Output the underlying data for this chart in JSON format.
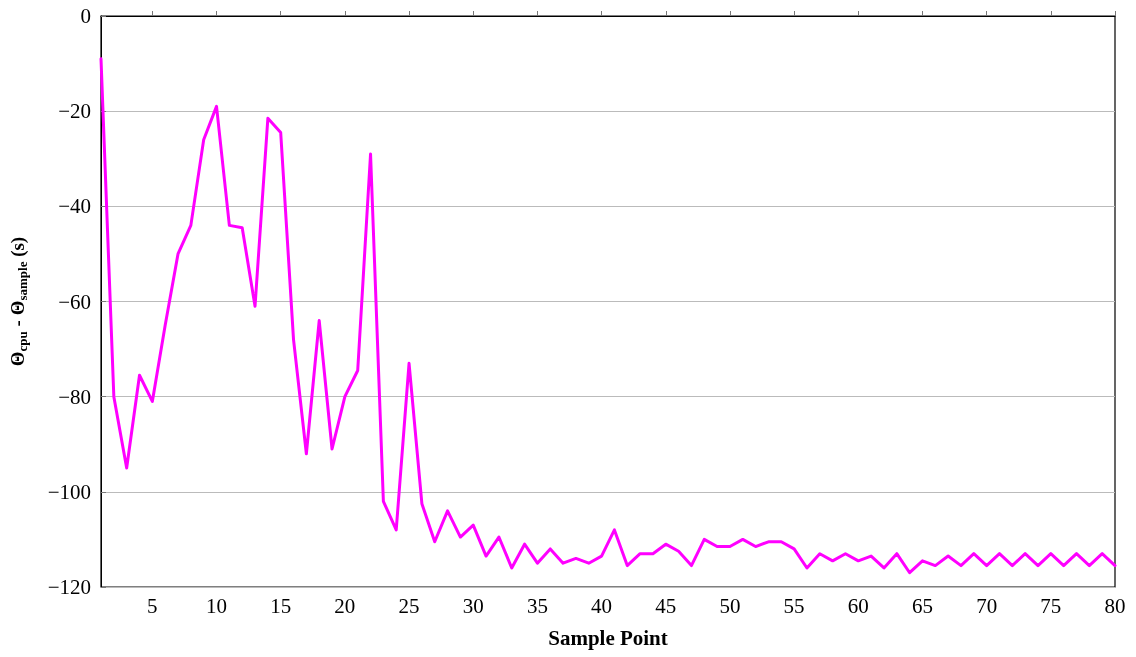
{
  "chart_data": {
    "type": "line",
    "xlabel": "Sample Point",
    "ylabel": "Θ$_{cpu}$ - Θ$_{sample}$ (s)",
    "x": [
      1,
      2,
      3,
      4,
      5,
      6,
      7,
      8,
      9,
      10,
      11,
      12,
      13,
      14,
      15,
      16,
      17,
      18,
      19,
      20,
      21,
      22,
      23,
      24,
      25,
      26,
      27,
      28,
      29,
      30,
      31,
      32,
      33,
      34,
      35,
      36,
      37,
      38,
      39,
      40,
      41,
      42,
      43,
      44,
      45,
      46,
      47,
      48,
      49,
      50,
      51,
      52,
      53,
      54,
      55,
      56,
      57,
      58,
      59,
      60,
      61,
      62,
      63,
      64,
      65,
      66,
      67,
      68,
      69,
      70,
      71,
      72,
      73,
      74,
      75,
      76,
      77,
      78,
      79,
      80
    ],
    "series": [
      {
        "color": "#ff00ff",
        "values": [
          -9,
          -80,
          -95,
          -75.5,
          -81,
          -65,
          -50,
          -44,
          -26,
          -19,
          -44,
          -44.5,
          -61,
          -21.5,
          -24.5,
          -68,
          -92,
          -64,
          -91,
          -80,
          -74.5,
          -29,
          -102,
          -108,
          -73,
          -102.5,
          -110.5,
          -104,
          -109.5,
          -107,
          -113.5,
          -109.5,
          -116,
          -111,
          -115,
          -112,
          -115,
          -114,
          -115,
          -113.5,
          -108,
          -115.5,
          -113,
          -113,
          -111,
          -112.5,
          -115.5,
          -110,
          -111.5,
          -111.5,
          -110,
          -111.5,
          -110.5,
          -110.5,
          -112,
          -116,
          -113,
          -114.5,
          -113,
          -114.5,
          -113.5,
          -116,
          -113,
          -117,
          -114.5,
          -115.5,
          -113.5,
          -115.5,
          -113,
          -115.5,
          -113,
          -115.5,
          -113,
          -115.5,
          -113,
          -115.5,
          -113,
          -115.5,
          -113,
          -115.5
        ]
      }
    ],
    "xlim": [
      1,
      80
    ],
    "xticks": [
      5,
      10,
      15,
      20,
      25,
      30,
      35,
      40,
      45,
      50,
      55,
      60,
      65,
      70,
      75,
      80
    ],
    "ylim": [
      -120,
      0
    ],
    "yticks": [
      -120,
      -100,
      -80,
      -60,
      -40,
      -20,
      0
    ],
    "grid": "y",
    "marker": "none",
    "line_style": "solid"
  }
}
